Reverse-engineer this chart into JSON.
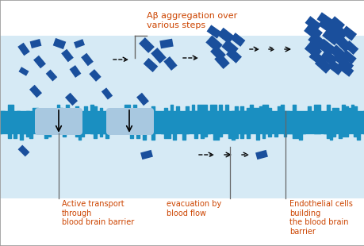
{
  "bg_color": "#ffffff",
  "light_blue": "#d6eaf5",
  "barrier_color": "#1a8fc1",
  "barrier_dark": "#1a7aaa",
  "diamond_color": "#1a4f9c",
  "text_color": "#cc4400",
  "annotation_line_color": "#666666",
  "transport_bubble_color": "#a8c8e0",
  "title": "Aβ aggregation over\nvarious steps",
  "label_active": "Active transport\nthrough\nblood brain barrier",
  "label_evacuation": "evacuation by\nblood flow",
  "label_endothelial": "Endothelial cells\nbuilding\nthe blood brain\nbarrier",
  "figsize": [
    4.6,
    3.1
  ],
  "dpi": 100
}
